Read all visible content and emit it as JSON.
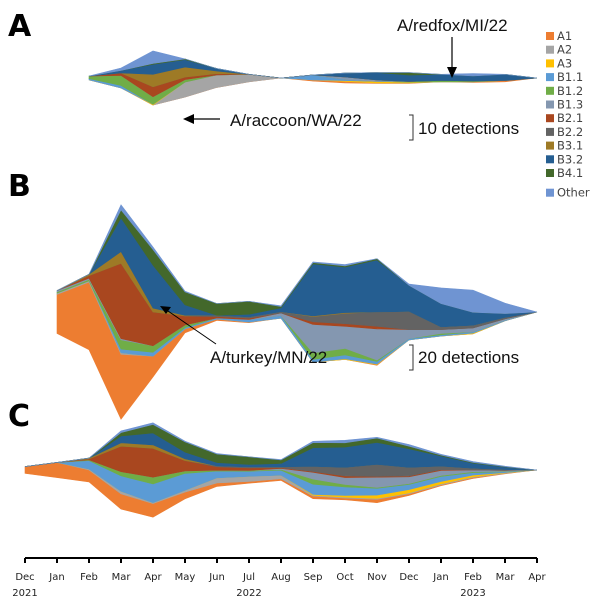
{
  "figure": {
    "panel_labels": [
      "A",
      "B",
      "C"
    ]
  },
  "chart_data": [
    {
      "type": "area",
      "subtype": "streamgraph",
      "panel": "A",
      "title": "",
      "xlabel": "",
      "ylabel": "",
      "x": [
        "Dec 2021",
        "Jan",
        "Feb",
        "Mar",
        "Apr",
        "May",
        "Jun",
        "Jul",
        "Aug",
        "Sep",
        "Oct",
        "Nov",
        "Dec",
        "Jan 2023",
        "Feb",
        "Mar",
        "Apr"
      ],
      "scale_bar": {
        "value": 10,
        "label": "10 detections"
      },
      "annotations": [
        {
          "text": "A/raccoon/WA/22",
          "month_index": 4
        },
        {
          "text": "A/redfox/MI/22",
          "month_index": 13
        }
      ],
      "series": [
        {
          "name": "A1",
          "values": [
            0,
            0,
            0,
            0,
            0,
            0,
            0,
            0,
            0,
            0.5,
            0.6,
            0.2,
            0.2,
            0,
            0.3,
            0.5,
            0
          ]
        },
        {
          "name": "A2",
          "values": [
            0,
            0,
            0,
            0,
            0,
            6,
            5,
            3,
            0,
            0,
            0,
            0,
            0,
            0,
            0,
            0,
            0
          ]
        },
        {
          "name": "A3",
          "values": [
            0,
            0,
            0,
            0,
            0.3,
            0,
            0,
            0,
            0,
            0,
            0.3,
            0.6,
            0.3,
            0,
            0,
            0,
            0
          ]
        },
        {
          "name": "B1.1",
          "values": [
            0,
            0,
            0.5,
            1,
            0,
            0,
            0,
            0,
            0,
            2,
            0.5,
            0,
            0,
            0,
            0,
            0,
            0
          ]
        },
        {
          "name": "B1.2",
          "values": [
            0,
            0,
            1,
            4,
            3,
            1,
            0,
            0,
            0,
            0,
            0,
            0,
            0.3,
            0.5,
            0.3,
            0,
            0
          ]
        },
        {
          "name": "B1.3",
          "values": [
            0,
            0,
            0,
            0,
            0,
            0,
            0,
            0,
            0,
            0,
            1,
            0.6,
            0,
            0,
            0,
            0,
            0
          ]
        },
        {
          "name": "B2.1",
          "values": [
            0,
            0,
            0,
            1,
            4,
            1,
            0.5,
            0,
            0,
            0,
            0,
            0,
            0,
            0,
            0,
            0,
            0
          ]
        },
        {
          "name": "B2.2",
          "values": [
            0,
            0,
            0,
            0,
            0,
            0,
            0,
            0,
            0,
            0,
            0,
            0,
            0,
            0,
            0,
            0,
            0
          ]
        },
        {
          "name": "B3.1",
          "values": [
            0,
            0,
            0,
            0,
            5,
            4,
            1,
            0,
            0,
            0,
            0,
            0,
            0,
            0,
            0,
            0,
            0
          ]
        },
        {
          "name": "B3.2",
          "values": [
            0,
            0,
            0,
            1,
            4,
            3,
            1,
            0,
            0,
            0,
            1.5,
            3,
            2.5,
            2.5,
            2,
            2.5,
            0
          ]
        },
        {
          "name": "B4.1",
          "values": [
            0,
            0,
            0,
            0,
            0.3,
            0.3,
            0,
            0,
            0,
            0,
            0,
            0,
            1,
            0,
            0,
            0,
            0
          ]
        },
        {
          "name": "Other",
          "values": [
            0,
            0,
            0,
            1,
            5,
            0,
            0,
            0,
            0,
            0,
            0,
            0,
            0,
            0,
            1,
            0,
            0
          ]
        }
      ]
    },
    {
      "type": "area",
      "subtype": "streamgraph",
      "panel": "B",
      "title": "",
      "xlabel": "",
      "ylabel": "",
      "x": [
        "Dec 2021",
        "Jan",
        "Feb",
        "Mar",
        "Apr",
        "May",
        "Jun",
        "Jul",
        "Aug",
        "Sep",
        "Oct",
        "Nov",
        "Dec",
        "Jan 2023",
        "Feb",
        "Mar",
        "Apr"
      ],
      "scale_bar": {
        "value": 20,
        "label": "20 detections"
      },
      "annotations": [
        {
          "text": "A/turkey/MN/22",
          "month_index": 4
        }
      ],
      "series": [
        {
          "name": "A1",
          "values": [
            5,
            30,
            52,
            50,
            16,
            3,
            1,
            0.5,
            0,
            0,
            0,
            0.5,
            0,
            0,
            0,
            0,
            0
          ]
        },
        {
          "name": "A2",
          "values": [
            0,
            1,
            1,
            1,
            0,
            0,
            0,
            0,
            0,
            0,
            0,
            0,
            0,
            0,
            0,
            0,
            0
          ]
        },
        {
          "name": "A3",
          "values": [
            0,
            0,
            0,
            0,
            0,
            0,
            0,
            0,
            0,
            0,
            0.5,
            0.5,
            0,
            0,
            0.5,
            0,
            0
          ]
        },
        {
          "name": "B1.1",
          "values": [
            0,
            0,
            0,
            3,
            3,
            1,
            1,
            2,
            2,
            2,
            3,
            2,
            1,
            1,
            1,
            0.5,
            0
          ]
        },
        {
          "name": "B1.2",
          "values": [
            0,
            1,
            1,
            7,
            5,
            2,
            0,
            0,
            0,
            5,
            5,
            1,
            0,
            1,
            0,
            0,
            0
          ]
        },
        {
          "name": "B1.3",
          "values": [
            0,
            1,
            1,
            1,
            0,
            0,
            0,
            0,
            2,
            22,
            17,
            24,
            7,
            3,
            3,
            1,
            0
          ]
        },
        {
          "name": "B2.1",
          "values": [
            0,
            0,
            2,
            58,
            26,
            7,
            1,
            1,
            0,
            2,
            2,
            2,
            0,
            0,
            0,
            0,
            0
          ]
        },
        {
          "name": "B2.2",
          "values": [
            0,
            0,
            0,
            0,
            0,
            0,
            1,
            1,
            1,
            4,
            8,
            11,
            14,
            2,
            2,
            1,
            0
          ]
        },
        {
          "name": "B3.1",
          "values": [
            0,
            0,
            1,
            9,
            3,
            0.5,
            0,
            0,
            0,
            0.5,
            0.5,
            0,
            0,
            0,
            0,
            0,
            0
          ]
        },
        {
          "name": "B3.2",
          "values": [
            0,
            0,
            0,
            26,
            33,
            8,
            0,
            2,
            3,
            40,
            35,
            40,
            20,
            18,
            10,
            3,
            0
          ]
        },
        {
          "name": "B4.1",
          "values": [
            0,
            0,
            0,
            6,
            12,
            10,
            9,
            10,
            1,
            1,
            1,
            1,
            0,
            0,
            0,
            0,
            0
          ]
        },
        {
          "name": "Other",
          "values": [
            0,
            0,
            0,
            4,
            2,
            0.5,
            0,
            0,
            0.5,
            0.5,
            1,
            0,
            1,
            12,
            17,
            8,
            0
          ]
        }
      ]
    },
    {
      "type": "area",
      "subtype": "streamgraph",
      "panel": "C",
      "title": "",
      "xlabel": "",
      "ylabel": "",
      "x": [
        "Dec 2021",
        "Jan",
        "Feb",
        "Mar",
        "Apr",
        "May",
        "Jun",
        "Jul",
        "Aug",
        "Sep",
        "Oct",
        "Nov",
        "Dec",
        "Jan 2023",
        "Feb",
        "Mar",
        "Apr"
      ],
      "series": [
        {
          "name": "A1",
          "values": [
            8,
            18,
            14,
            18,
            16,
            8,
            4,
            2,
            2,
            3,
            2,
            4,
            2,
            1,
            1,
            0.5,
            0
          ]
        },
        {
          "name": "A2",
          "values": [
            0,
            0,
            1,
            3,
            1,
            2,
            6,
            6,
            4,
            1,
            1,
            1,
            1,
            1,
            1,
            0.5,
            0
          ]
        },
        {
          "name": "A3",
          "values": [
            0,
            0,
            0,
            0,
            0,
            0,
            0,
            0,
            0,
            1,
            2,
            4,
            4,
            3,
            2,
            0.5,
            0
          ]
        },
        {
          "name": "B1.1",
          "values": [
            0,
            0,
            10,
            18,
            22,
            20,
            8,
            6,
            6,
            12,
            10,
            8,
            6,
            6,
            3,
            1,
            0
          ]
        },
        {
          "name": "B1.2",
          "values": [
            0,
            0,
            1,
            5,
            8,
            3,
            1,
            1,
            1,
            6,
            3,
            1,
            1,
            1,
            1,
            0.5,
            0
          ]
        },
        {
          "name": "B1.3",
          "values": [
            0,
            0,
            0,
            0,
            0,
            0,
            0,
            0,
            1,
            8,
            8,
            12,
            8,
            6,
            2,
            1,
            0
          ]
        },
        {
          "name": "B2.1",
          "values": [
            0,
            0,
            1,
            30,
            34,
            12,
            4,
            3,
            1,
            1,
            2,
            1,
            1,
            1,
            0,
            0,
            0
          ]
        },
        {
          "name": "B2.2",
          "values": [
            0,
            0,
            0,
            0,
            0,
            0,
            1,
            1,
            1,
            6,
            10,
            14,
            10,
            4,
            2,
            1,
            0
          ]
        },
        {
          "name": "B3.1",
          "values": [
            0,
            0,
            1,
            4,
            4,
            2,
            0,
            0,
            0,
            0,
            0,
            0,
            0,
            0,
            0,
            0,
            0
          ]
        },
        {
          "name": "B3.2",
          "values": [
            0,
            0,
            0,
            8,
            14,
            8,
            4,
            3,
            4,
            22,
            24,
            26,
            22,
            12,
            6,
            3,
            0
          ]
        },
        {
          "name": "B4.1",
          "values": [
            0,
            0,
            0,
            4,
            10,
            12,
            10,
            9,
            4,
            6,
            5,
            5,
            3,
            1,
            1,
            0.5,
            0
          ]
        },
        {
          "name": "Other",
          "values": [
            0,
            0,
            0,
            2,
            2,
            1,
            0.5,
            0,
            0.5,
            1.5,
            3,
            1,
            2,
            1,
            1,
            0.5,
            0
          ]
        }
      ]
    }
  ],
  "legend": {
    "placement": "right",
    "items": [
      {
        "label": "A1",
        "color": "#ED7D31"
      },
      {
        "label": "A2",
        "color": "#A5A5A5"
      },
      {
        "label": "A3",
        "color": "#FFC000"
      },
      {
        "label": "B1.1",
        "color": "#5B9BD5"
      },
      {
        "label": "B1.2",
        "color": "#70AD47"
      },
      {
        "label": "B1.3",
        "color": "#8497B0"
      },
      {
        "label": "B2.1",
        "color": "#A9471F"
      },
      {
        "label": "B2.2",
        "color": "#636363"
      },
      {
        "label": "B3.1",
        "color": "#9E7A26"
      },
      {
        "label": "B3.2",
        "color": "#255E91"
      },
      {
        "label": "B4.1",
        "color": "#43682B"
      },
      {
        "label": "Other",
        "color": "#6F94D2"
      }
    ]
  },
  "x_axis": {
    "ticks": [
      "Dec",
      "Jan",
      "Feb",
      "Mar",
      "Apr",
      "May",
      "Jun",
      "Jul",
      "Aug",
      "Sep",
      "Oct",
      "Nov",
      "Dec",
      "Jan",
      "Feb",
      "Mar",
      "Apr"
    ],
    "years": [
      {
        "label": "2021",
        "under_tick": 0
      },
      {
        "label": "2022",
        "under_tick": 7
      },
      {
        "label": "2023",
        "under_tick": 14
      }
    ]
  }
}
